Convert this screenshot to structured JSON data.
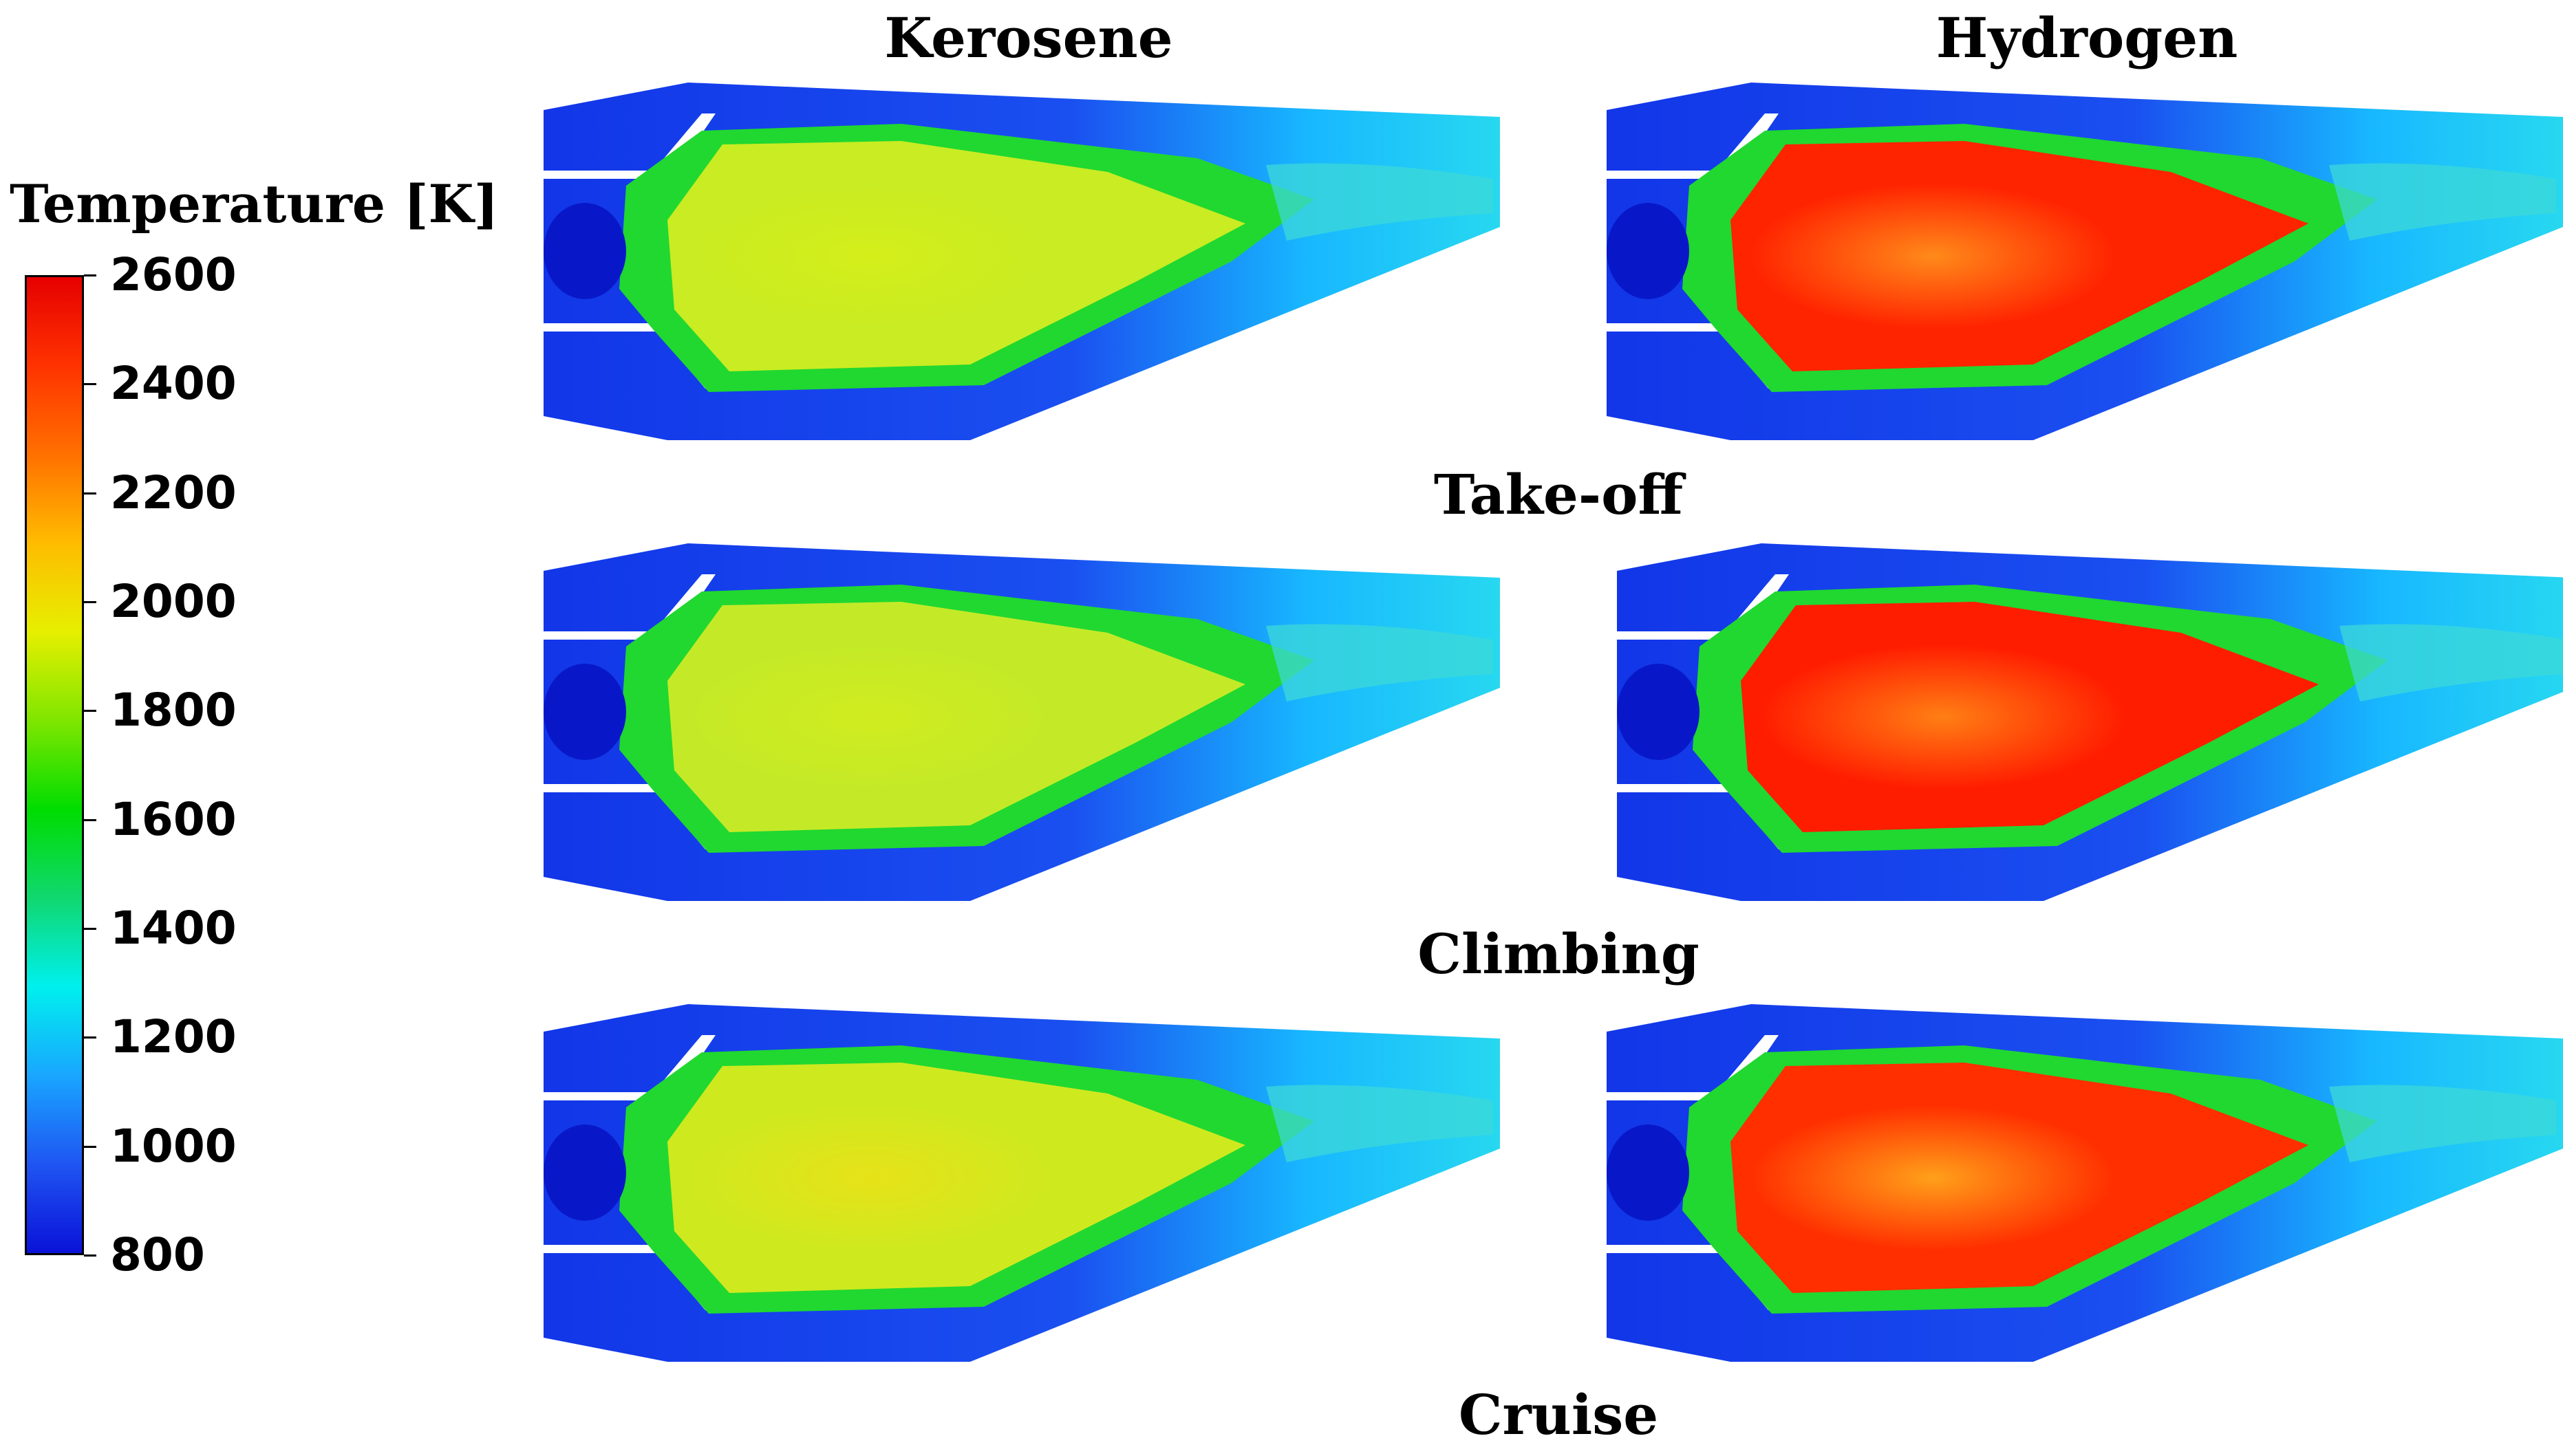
{
  "columns": [
    "Kerosene",
    "Hydrogen"
  ],
  "rows": [
    "Take-off",
    "Climbing",
    "Cruise"
  ],
  "legend": {
    "title": "Temperature [K]",
    "min": 800,
    "max": 2600,
    "ticks": [
      "2600",
      "2400",
      "2200",
      "2000",
      "1800",
      "1600",
      "1400",
      "1200",
      "1000",
      "800"
    ],
    "colormap": [
      "#0a12d8",
      "#1f55f2",
      "#19a6ff",
      "#00f0ee",
      "#10d870",
      "#00dd00",
      "#7fe600",
      "#e6ef00",
      "#ffbc00",
      "#ff7000",
      "#ff3300",
      "#e60000"
    ]
  },
  "panels": [
    {
      "row": "Take-off",
      "fuel": "Kerosene",
      "core_color": "#c9ec22",
      "hot_color": "#d4ee1a"
    },
    {
      "row": "Take-off",
      "fuel": "Hydrogen",
      "core_color": "#ff2400",
      "hot_color": "#ff8a1a"
    },
    {
      "row": "Climbing",
      "fuel": "Kerosene",
      "core_color": "#c4ea27",
      "hot_color": "#d0ec1f"
    },
    {
      "row": "Climbing",
      "fuel": "Hydrogen",
      "core_color": "#ff1d00",
      "hot_color": "#ff7f14"
    },
    {
      "row": "Cruise",
      "fuel": "Kerosene",
      "core_color": "#cfe91f",
      "hot_color": "#e7e218"
    },
    {
      "row": "Cruise",
      "fuel": "Hydrogen",
      "core_color": "#ff2f00",
      "hot_color": "#ffa01a"
    }
  ]
}
